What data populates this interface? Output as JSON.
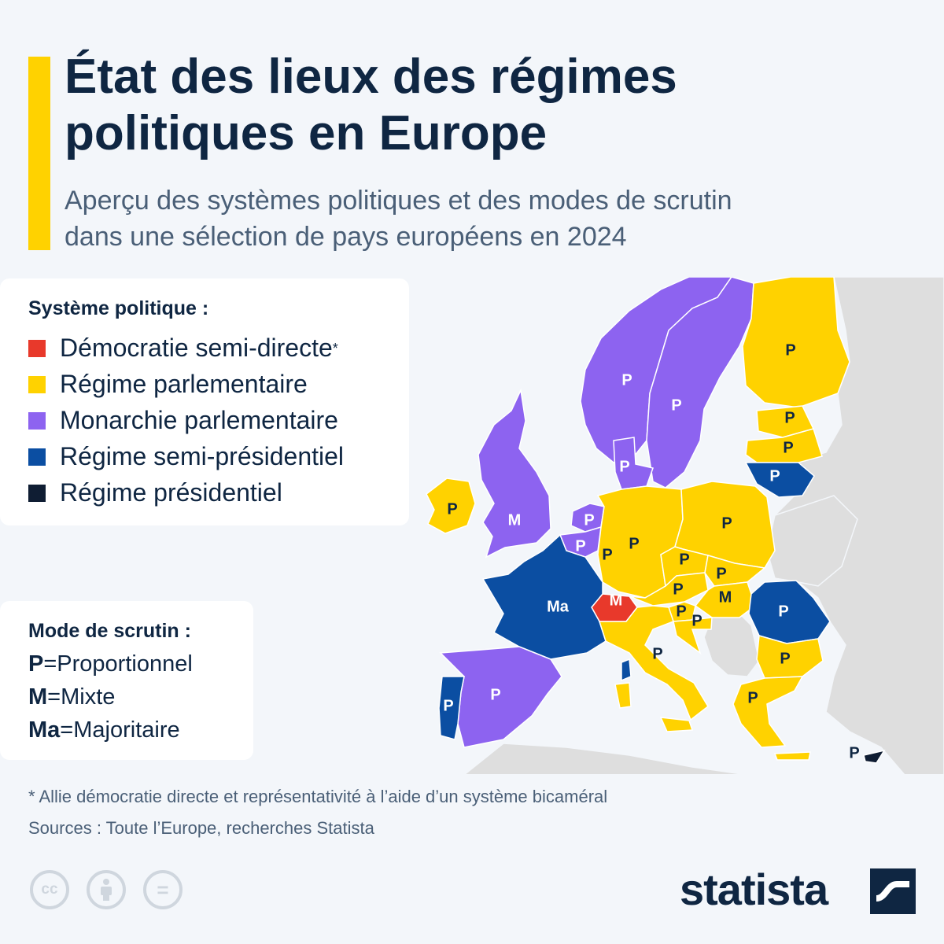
{
  "header": {
    "title_line1": "État des lieux des régimes",
    "title_line2": "politiques en Europe",
    "subtitle_line1": "Aperçu des systèmes politiques et des modes de scrutin",
    "subtitle_line2": "dans une sélection de pays européens en 2024"
  },
  "colors": {
    "semi_direct": "#e8392b",
    "parliamentary": "#ffd200",
    "monarchy": "#8d63f0",
    "semi_presidential": "#0b4ea2",
    "presidential": "#0f1d33",
    "non_selected": "#dedede",
    "sea": "#f3f6fa",
    "accent": "#ffd200"
  },
  "legend_system": {
    "title": "Système politique :",
    "items": [
      {
        "label": "Démocratie semi-directe",
        "mark": "*",
        "color": "#e8392b"
      },
      {
        "label": "Régime parlementaire",
        "mark": "",
        "color": "#ffd200"
      },
      {
        "label": "Monarchie parlementaire",
        "mark": "",
        "color": "#8d63f0"
      },
      {
        "label": "Régime semi-présidentiel",
        "mark": "",
        "color": "#0b4ea2"
      },
      {
        "label": "Régime présidentiel",
        "mark": "",
        "color": "#0f1d33"
      }
    ]
  },
  "legend_mode": {
    "title": "Mode de scrutin :",
    "items": [
      {
        "code": "P",
        "eq": "=",
        "label": "Proportionnel"
      },
      {
        "code": "M",
        "eq": "=",
        "label": "Mixte"
      },
      {
        "code": "Ma",
        "eq": "=",
        "label": "Majoritaire"
      }
    ]
  },
  "map": {
    "regions": [
      {
        "name": "Irlande",
        "system": "parliamentary",
        "mode": "P"
      },
      {
        "name": "Royaume-Uni",
        "system": "monarchy",
        "mode": "M"
      },
      {
        "name": "Norvège",
        "system": "monarchy",
        "mode": "P"
      },
      {
        "name": "Suède",
        "system": "monarchy",
        "mode": "P"
      },
      {
        "name": "Finlande",
        "system": "parliamentary",
        "mode": "P"
      },
      {
        "name": "Estonie",
        "system": "parliamentary",
        "mode": "P"
      },
      {
        "name": "Lettonie",
        "system": "parliamentary",
        "mode": "P"
      },
      {
        "name": "Lituanie",
        "system": "semi_presidential",
        "mode": "P"
      },
      {
        "name": "Danemark",
        "system": "monarchy",
        "mode": "P"
      },
      {
        "name": "Pays-Bas",
        "system": "monarchy",
        "mode": "P"
      },
      {
        "name": "Belgique",
        "system": "monarchy",
        "mode": "P"
      },
      {
        "name": "Luxembourg",
        "system": "parliamentary",
        "mode": "P"
      },
      {
        "name": "Allemagne",
        "system": "parliamentary",
        "mode": "P"
      },
      {
        "name": "Pologne",
        "system": "parliamentary",
        "mode": "P"
      },
      {
        "name": "Tchéquie",
        "system": "parliamentary",
        "mode": "P"
      },
      {
        "name": "Slovaquie",
        "system": "parliamentary",
        "mode": "P"
      },
      {
        "name": "Autriche",
        "system": "parliamentary",
        "mode": "P"
      },
      {
        "name": "Hongrie",
        "system": "parliamentary",
        "mode": "M"
      },
      {
        "name": "Slovénie",
        "system": "parliamentary",
        "mode": "P"
      },
      {
        "name": "Croatie",
        "system": "parliamentary",
        "mode": "P"
      },
      {
        "name": "Suisse",
        "system": "semi_direct",
        "mode": "M"
      },
      {
        "name": "France",
        "system": "semi_presidential",
        "mode": "Ma"
      },
      {
        "name": "Italie",
        "system": "parliamentary",
        "mode": "P"
      },
      {
        "name": "Espagne",
        "system": "monarchy",
        "mode": "P"
      },
      {
        "name": "Portugal",
        "system": "semi_presidential",
        "mode": "P"
      },
      {
        "name": "Roumanie",
        "system": "semi_presidential",
        "mode": "P"
      },
      {
        "name": "Bulgarie",
        "system": "parliamentary",
        "mode": "P"
      },
      {
        "name": "Grèce",
        "system": "parliamentary",
        "mode": "P"
      },
      {
        "name": "Chypre",
        "system": "presidential",
        "mode": "P"
      }
    ]
  },
  "footer": {
    "footnote": "* Allie démocratie directe et représentativité à l’aide d’un système bicaméral",
    "sources": "Sources : Toute l’Europe, recherches Statista",
    "license_icons": [
      "cc-icon",
      "attribution-icon",
      "no-derivatives-icon"
    ],
    "license_cc": "cc",
    "license_nd": "=",
    "brand": "statista"
  }
}
